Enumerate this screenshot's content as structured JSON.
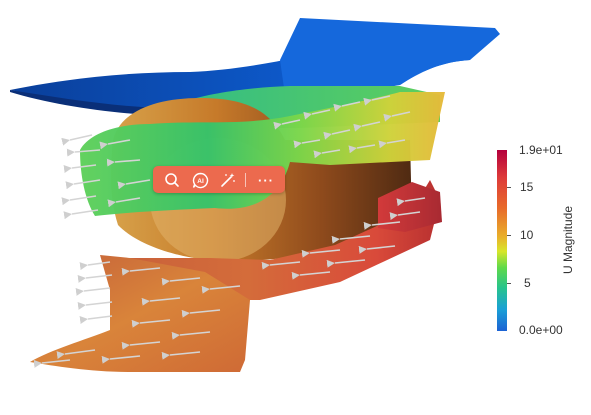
{
  "viewport": {
    "toolbar": {
      "buttons": [
        {
          "name": "search",
          "icon": "magnifier-icon"
        },
        {
          "name": "ai",
          "icon": "ai-chat-icon",
          "label": "AI"
        },
        {
          "name": "magic",
          "icon": "magic-wand-icon"
        },
        {
          "name": "more",
          "icon": "more-dots-icon",
          "label": "···"
        }
      ],
      "background_color": "#ec6a4e"
    },
    "colorbar": {
      "title": "U Magnitude",
      "max_label": "1.9e+01",
      "min_label": "0.0e+00",
      "tick_labels": [
        "15",
        "10",
        "5"
      ],
      "range": [
        0,
        19
      ]
    }
  }
}
